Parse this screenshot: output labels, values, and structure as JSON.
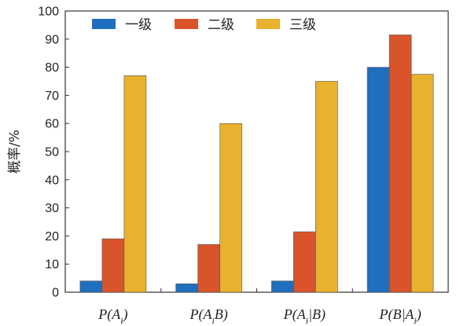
{
  "chart_data": {
    "type": "bar",
    "categories": [
      {
        "label": "P(A|)",
        "pre": "P(A",
        "sub": "i",
        "post": ")"
      },
      {
        "label": "P(A|B)",
        "pre": "P(A",
        "sub": "i",
        "post": "B)"
      },
      {
        "label": "P(A||B)",
        "pre": "P(A",
        "sub": "i",
        "post": "|B)"
      },
      {
        "label": "P(B|A)",
        "pre": "P(B|A",
        "sub": "i",
        "post": ")"
      }
    ],
    "series": [
      {
        "name": "一级",
        "color": "#1f6fbf",
        "values": [
          4,
          3,
          4,
          80
        ]
      },
      {
        "name": "二级",
        "color": "#d9542a",
        "values": [
          19,
          17,
          21.5,
          91.5
        ]
      },
      {
        "name": "三级",
        "color": "#e8b12e",
        "values": [
          77,
          60,
          75,
          77.5
        ]
      }
    ],
    "ylabel": "概率/%",
    "ylim": [
      0,
      100
    ],
    "yticks": [
      0,
      10,
      20,
      30,
      40,
      50,
      60,
      70,
      80,
      90,
      100
    ],
    "legend_position": "top",
    "grid": false
  }
}
